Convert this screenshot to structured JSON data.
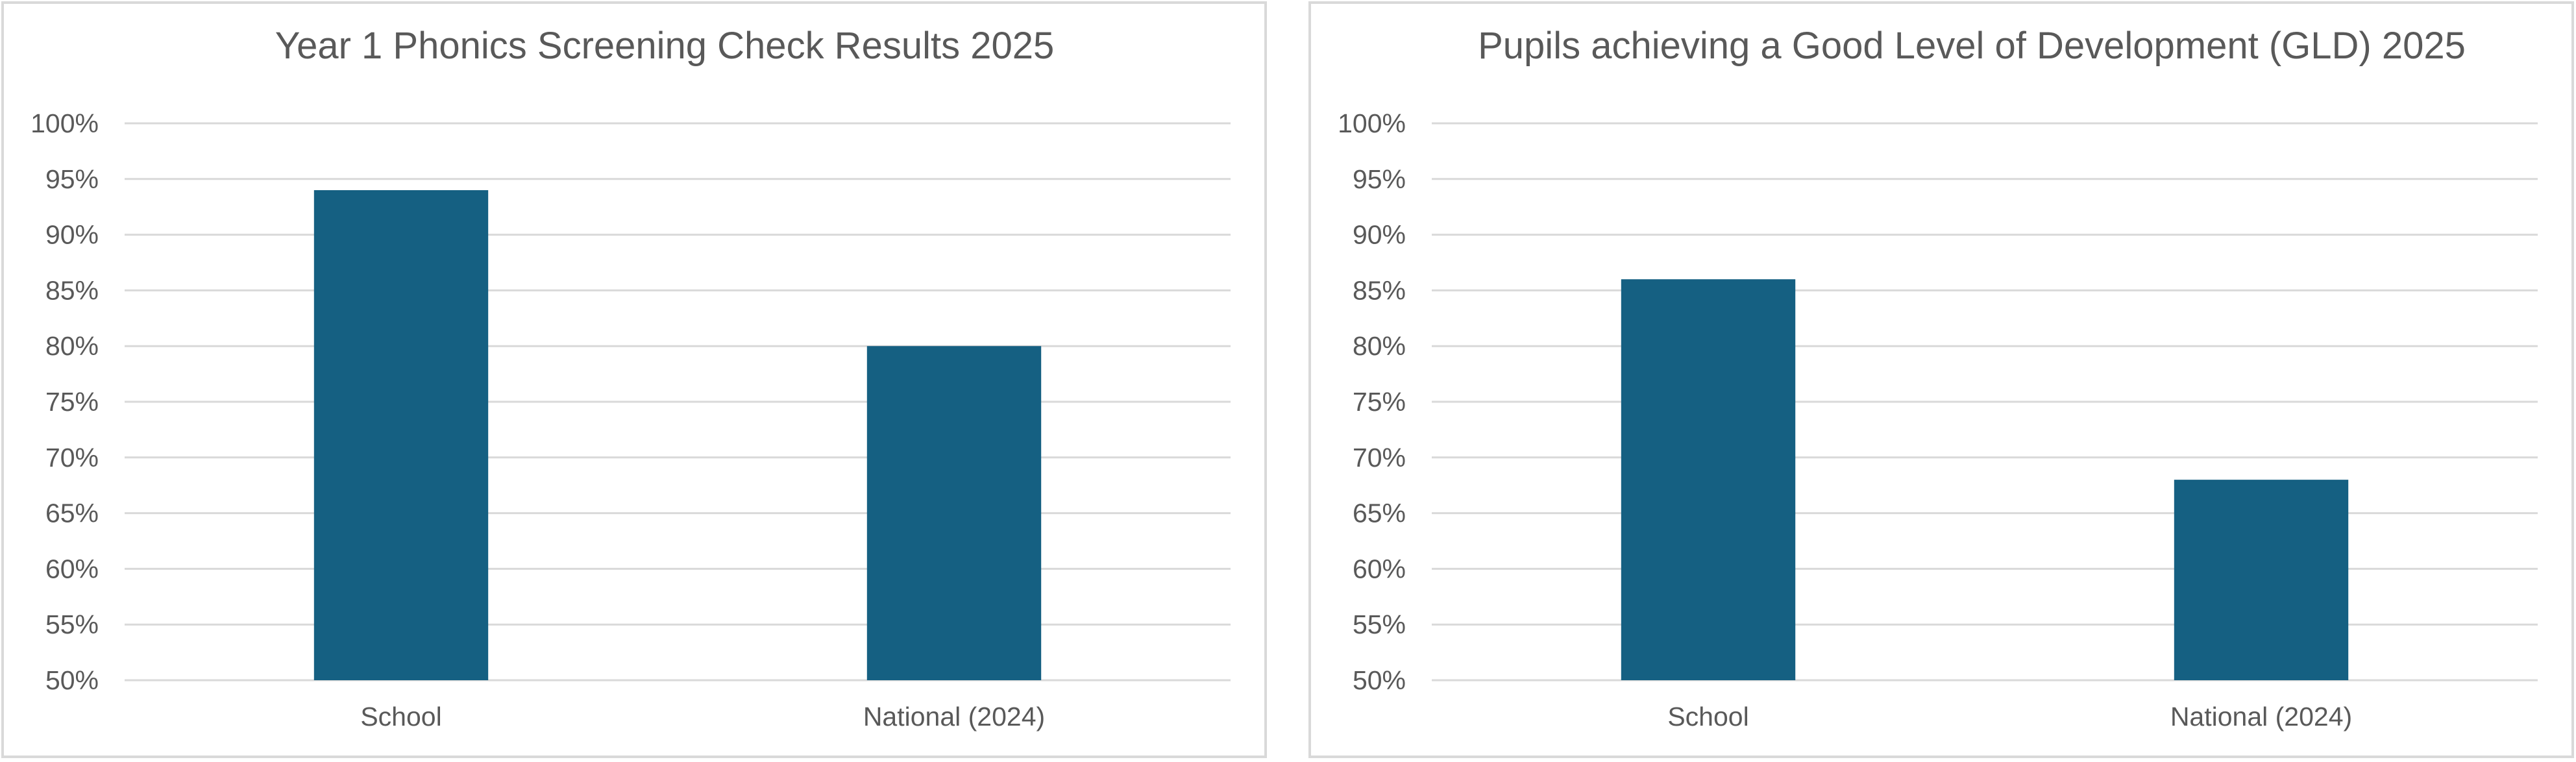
{
  "colors": {
    "bar": "#156082",
    "gridline": "#d9d9d9",
    "text": "#595959",
    "border": "#d9d9d9"
  },
  "chart_data": [
    {
      "type": "bar",
      "title": "Year 1 Phonics Screening Check Results 2025",
      "categories": [
        "School",
        "National (2024)"
      ],
      "values": [
        94,
        80
      ],
      "ylim": [
        50,
        100
      ],
      "yticks": [
        "50%",
        "55%",
        "60%",
        "65%",
        "70%",
        "75%",
        "80%",
        "85%",
        "90%",
        "95%",
        "100%"
      ],
      "grid": true,
      "legend": "none"
    },
    {
      "type": "bar",
      "title": "Pupils achieving a Good Level of Development (GLD) 2025",
      "categories": [
        "School",
        "National (2024)"
      ],
      "values": [
        86,
        68
      ],
      "ylim": [
        50,
        100
      ],
      "yticks": [
        "50%",
        "55%",
        "60%",
        "65%",
        "70%",
        "75%",
        "80%",
        "85%",
        "90%",
        "95%",
        "100%"
      ],
      "grid": true,
      "legend": "none"
    }
  ]
}
